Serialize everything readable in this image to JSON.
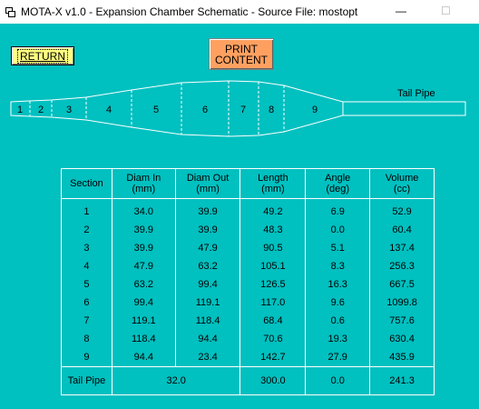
{
  "window": {
    "title": "MOTA-X v1.0 - Expansion Chamber Schematic - Source File: mostopt",
    "minimize": "—",
    "maximize": "☐"
  },
  "buttons": {
    "return_label": "RETURN",
    "print_line1": "PRINT",
    "print_line2": "CONTENT"
  },
  "schematic": {
    "sections": [
      "1",
      "2",
      "3",
      "4",
      "5",
      "6",
      "7",
      "8",
      "9"
    ],
    "tail_pipe_label": "Tail Pipe"
  },
  "table": {
    "headers": [
      {
        "l1": "Section",
        "l2": ""
      },
      {
        "l1": "Diam In",
        "l2": "(mm)"
      },
      {
        "l1": "Diam Out",
        "l2": "(mm)"
      },
      {
        "l1": "Length",
        "l2": "(mm)"
      },
      {
        "l1": "Angle",
        "l2": "(deg)"
      },
      {
        "l1": "Volume",
        "l2": "(cc)"
      }
    ],
    "rows": [
      [
        "1",
        "34.0",
        "39.9",
        "49.2",
        "6.9",
        "52.9"
      ],
      [
        "2",
        "39.9",
        "39.9",
        "48.3",
        "0.0",
        "60.4"
      ],
      [
        "3",
        "39.9",
        "47.9",
        "90.5",
        "5.1",
        "137.4"
      ],
      [
        "4",
        "47.9",
        "63.2",
        "105.1",
        "8.3",
        "256.3"
      ],
      [
        "5",
        "63.2",
        "99.4",
        "126.5",
        "16.3",
        "667.5"
      ],
      [
        "6",
        "99.4",
        "119.1",
        "117.0",
        "9.6",
        "1099.8"
      ],
      [
        "7",
        "119.1",
        "118.4",
        "68.4",
        "0.6",
        "757.6"
      ],
      [
        "8",
        "118.4",
        "94.4",
        "70.6",
        "19.3",
        "630.4"
      ],
      [
        "9",
        "94.4",
        "23.4",
        "142.7",
        "27.9",
        "435.9"
      ]
    ],
    "footer": {
      "label": "Tail Pipe",
      "diam": "32.0",
      "length": "300.0",
      "angle": "0.0",
      "volume": "241.3"
    }
  }
}
